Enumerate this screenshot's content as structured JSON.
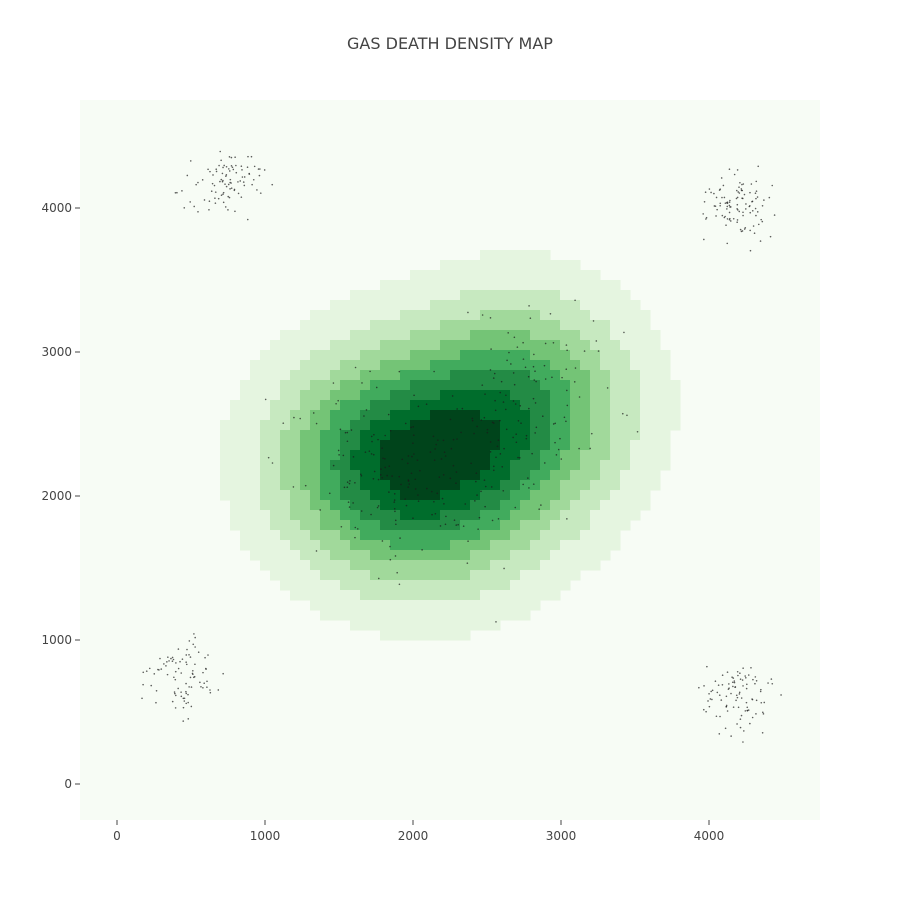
{
  "chart_data": {
    "type": "heatmap",
    "subtype": "density-contour",
    "title": "GAS DEATH DENSITY MAP",
    "xlabel": "",
    "ylabel": "",
    "xlim": [
      -250,
      4750
    ],
    "ylim": [
      -250,
      4750
    ],
    "x_ticks": [
      0,
      1000,
      2000,
      3000,
      4000
    ],
    "y_ticks": [
      0,
      1000,
      2000,
      3000,
      4000
    ],
    "x_tick_labels": [
      "0",
      "1000",
      "2000",
      "3000",
      "4000"
    ],
    "y_tick_labels": [
      "0",
      "1000",
      "2000",
      "3000",
      "4000"
    ],
    "colorscale": [
      "#f7fcf5",
      "#e5f5e0",
      "#c7e9c0",
      "#a1d99b",
      "#74c476",
      "#41ab5d",
      "#238b45",
      "#006d2c",
      "#00441b"
    ],
    "contour_line_color": "#5a5a5a",
    "grid": false,
    "legend": "none",
    "density_peaks": [
      {
        "x": 1750,
        "y": 2250,
        "weight": 1.0
      },
      {
        "x": 2750,
        "y": 2650,
        "weight": 0.95
      },
      {
        "x": 2250,
        "y": 2050,
        "weight": 0.6
      }
    ],
    "minor_modes": [
      {
        "x": 750,
        "y": 4200
      },
      {
        "x": 4200,
        "y": 4000
      },
      {
        "x": 450,
        "y": 750
      },
      {
        "x": 4200,
        "y": 600
      }
    ],
    "scatter_point_color": "#1a1a1a"
  }
}
